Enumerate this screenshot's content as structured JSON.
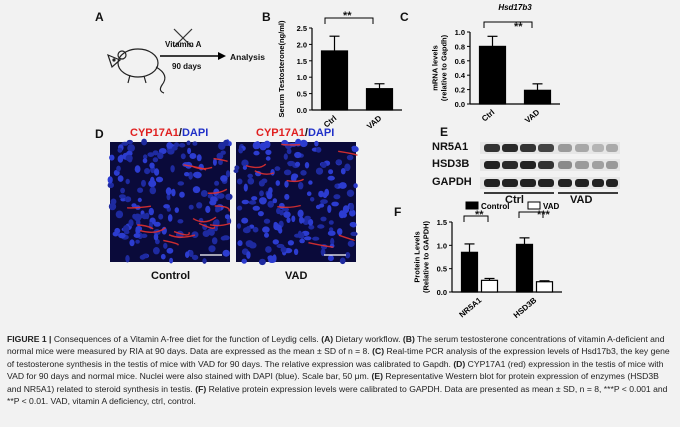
{
  "panelA": {
    "letter": "A",
    "treatment": "Vitamin A",
    "duration": "90 days",
    "outcome": "Analysis"
  },
  "panelB": {
    "letter": "B",
    "significance": "**"
  },
  "panelC": {
    "letter": "C",
    "significance": "**"
  },
  "panelD": {
    "letter": "D",
    "stain_red": "CYP17A1",
    "stain_sep": "/",
    "stain_blue": "DAPI",
    "labels": [
      "Control",
      "VAD"
    ]
  },
  "panelE": {
    "letter": "E",
    "proteins": [
      "NR5A1",
      "HSD3B",
      "GAPDH"
    ],
    "groups": [
      "Ctrl",
      "VAD"
    ]
  },
  "panelF": {
    "letter": "F",
    "significance": [
      "**",
      "***"
    ]
  },
  "chart_data": [
    {
      "type": "bar",
      "panel": "B",
      "categories": [
        "Ctrl",
        "VAD"
      ],
      "values": [
        1.8,
        0.65
      ],
      "errors": [
        0.45,
        0.15
      ],
      "ylabel": "Serum Testosterone(ng/ml)",
      "ylim": [
        0,
        2.5
      ],
      "yticks": [
        "0.0",
        "0.5",
        "1.0",
        "1.5",
        "2.0",
        "2.5"
      ],
      "bar_colors": [
        "#000000",
        "#000000"
      ]
    },
    {
      "type": "bar",
      "panel": "C",
      "title": "Hsd17b3",
      "categories": [
        "Ctrl",
        "VAD"
      ],
      "values": [
        0.8,
        0.19
      ],
      "errors": [
        0.14,
        0.09
      ],
      "ylabel": "mRNA levels\n(relative to Gapdh)",
      "ylim": [
        0,
        1.0
      ],
      "yticks": [
        "0.0",
        "0.2",
        "0.4",
        "0.6",
        "0.8",
        "1.0"
      ],
      "bar_colors": [
        "#000000",
        "#000000"
      ]
    },
    {
      "type": "bar",
      "panel": "F",
      "categories": [
        "NR5A1",
        "HSD3B"
      ],
      "series": [
        {
          "name": "Control",
          "values": [
            0.85,
            1.02
          ],
          "errors": [
            0.18,
            0.14
          ],
          "color": "#000000"
        },
        {
          "name": "VAD",
          "values": [
            0.25,
            0.22
          ],
          "errors": [
            0.04,
            0.02
          ],
          "color": "#ffffff"
        }
      ],
      "ylabel": "Protein Levels\n(Relative to GAPDH)",
      "ylim": [
        0,
        1.5
      ],
      "yticks": [
        "0.0",
        "0.5",
        "1.0",
        "1.5"
      ],
      "legend": "top-right"
    }
  ],
  "caption": {
    "label": "FIGURE 1 |",
    "text_1": "Consequences of a Vitamin A-free diet for the function of Leydig cells.",
    "a_letter": "(A)",
    "a_text": "Dietary workflow.",
    "b_letter": "(B)",
    "b_text": "The serum testosterone concentrations of vitamin A-deficient and normal mice were measured by RIA at 90 days. Data are expressed as the mean ± SD of n = 8.",
    "c_letter": "(C)",
    "c_text": "Real-time PCR analysis of the expression levels of Hsd17b3, the key gene of testosterone synthesis in the testis of mice with VAD for 90 days. The relative expression was calibrated to Gapdh.",
    "d_letter": "(D)",
    "d_text": "CYP17A1 (red) expression in the testis of mice with VAD for 90 days and normal mice. Nuclei were also stained with DAPI (blue). Scale bar, 50 μm.",
    "e_letter": "(E)",
    "e_text": "Representative Western blot for protein expression of enzymes (HSD3B and NR5A1) related to steroid synthesis in testis.",
    "f_letter": "(F)",
    "f_text": "Relative protein expression levels were calibrated to GAPDH. Data are presented as mean ± SD, n = 8, ***P < 0.001 and **P < 0.01. VAD, vitamin A deficiency, ctrl, control."
  }
}
